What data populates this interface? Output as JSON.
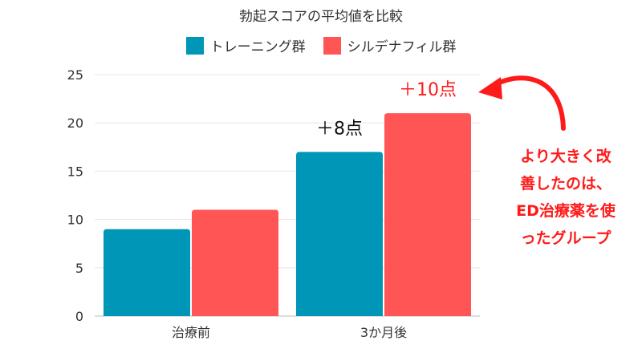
{
  "chart_data": {
    "type": "bar",
    "title": "勃起スコアの平均値を比較",
    "categories": [
      "治療前",
      "3か月後"
    ],
    "series": [
      {
        "name": "トレーニング群",
        "color": "#0096b8",
        "values": [
          9,
          17
        ]
      },
      {
        "name": "シルデナフィル群",
        "color": "#ff5555",
        "values": [
          11,
          21
        ]
      }
    ],
    "ylim": [
      0,
      25
    ],
    "yticks": [
      0,
      5,
      10,
      15,
      20,
      25
    ],
    "grid": true,
    "legend_position": "top",
    "data_labels": [
      {
        "text": "＋8点",
        "series": 0,
        "category": 1,
        "color": "#111111"
      },
      {
        "text": "＋10点",
        "series": 1,
        "category": 1,
        "color": "#ff1a1a"
      }
    ]
  },
  "annotation": {
    "lines": [
      "より大きく改",
      "善したのは、",
      "ED治療薬を使",
      "ったグループ"
    ],
    "color": "#ff1a1a"
  }
}
